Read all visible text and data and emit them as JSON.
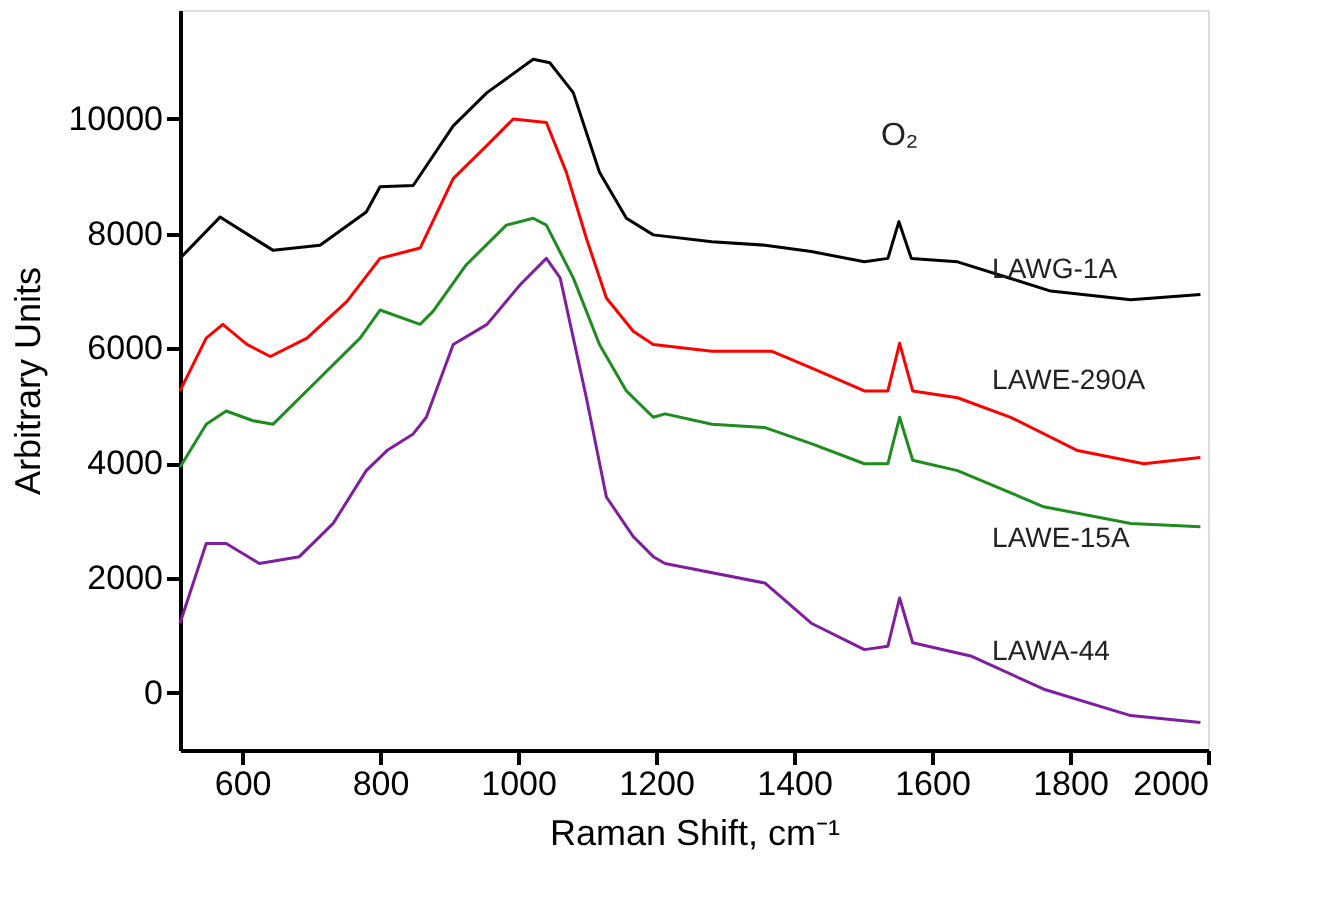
{
  "chart_data": {
    "type": "line",
    "xlabel": "Raman Shift, cm⁻¹",
    "ylabel": "Arbitrary Units",
    "xlim": [
      510,
      2000
    ],
    "xticks": [
      600,
      800,
      1000,
      1200,
      1400,
      1600,
      1800,
      2000
    ],
    "ylim": [
      -1000,
      11900
    ],
    "yticks": [
      0,
      2000,
      4000,
      6000,
      8000,
      10000
    ],
    "grid": false,
    "legend": false,
    "marker": "none",
    "line_style": "solid",
    "annotations": [
      "O₂"
    ],
    "series": [
      {
        "name": "LAWG-1A",
        "color": "#000000",
        "x": [
          510,
          568,
          645,
          713,
          780,
          800,
          848,
          906,
          955,
          1022,
          1046,
          1080,
          1118,
          1157,
          1196,
          1281,
          1358,
          1425,
          1502,
          1536,
          1552,
          1570,
          1637,
          1714,
          1772,
          1888,
          1989
        ],
        "values": [
          7570,
          8290,
          7710,
          7800,
          8380,
          8820,
          8840,
          9880,
          10460,
          11040,
          10980,
          10460,
          9070,
          8270,
          7980,
          7860,
          7800,
          7690,
          7510,
          7570,
          8210,
          7570,
          7510,
          7220,
          7000,
          6850,
          6940
        ]
      },
      {
        "name": "LAWE-290A",
        "color": "#ff0000",
        "x": [
          510,
          548,
          572,
          607,
          641,
          694,
          752,
          800,
          858,
          906,
          955,
          993,
          1041,
          1070,
          1099,
          1128,
          1167,
          1196,
          1281,
          1368,
          1425,
          1502,
          1536,
          1553,
          1572,
          1637,
          1714,
          1811,
          1907,
          1989
        ],
        "values": [
          5260,
          6180,
          6420,
          6070,
          5860,
          6180,
          6820,
          7570,
          7750,
          8960,
          9540,
          10000,
          9940,
          9070,
          7920,
          6880,
          6300,
          6070,
          5950,
          5950,
          5660,
          5260,
          5260,
          6090,
          5260,
          5140,
          4800,
          4220,
          3990,
          4100
        ]
      },
      {
        "name": "LAWE-15A",
        "color": "#1e8c1e",
        "x": [
          510,
          548,
          577,
          616,
          645,
          713,
          771,
          800,
          858,
          877,
          925,
          983,
          1022,
          1041,
          1080,
          1118,
          1157,
          1196,
          1213,
          1281,
          1358,
          1425,
          1502,
          1536,
          1553,
          1572,
          1637,
          1762,
          1888,
          1989
        ],
        "values": [
          3930,
          4680,
          4910,
          4740,
          4680,
          5490,
          6180,
          6670,
          6420,
          6650,
          7460,
          8150,
          8270,
          8150,
          7230,
          6070,
          5260,
          4800,
          4860,
          4680,
          4620,
          4340,
          3990,
          3990,
          4800,
          4050,
          3870,
          3240,
          2950,
          2890
        ]
      },
      {
        "name": "LAWA-44",
        "color": "#7f1f9f",
        "x": [
          510,
          548,
          577,
          625,
          683,
          732,
          780,
          810,
          848,
          867,
          906,
          955,
          1003,
          1041,
          1061,
          1099,
          1128,
          1167,
          1196,
          1213,
          1358,
          1425,
          1502,
          1536,
          1553,
          1572,
          1656,
          1762,
          1888,
          1989
        ],
        "values": [
          1210,
          2600,
          2600,
          2250,
          2370,
          2950,
          3870,
          4220,
          4510,
          4800,
          6070,
          6420,
          7110,
          7570,
          7230,
          5140,
          3410,
          2720,
          2370,
          2250,
          1910,
          1210,
          750,
          810,
          1650,
          870,
          640,
          60,
          -400,
          -520
        ]
      }
    ]
  }
}
